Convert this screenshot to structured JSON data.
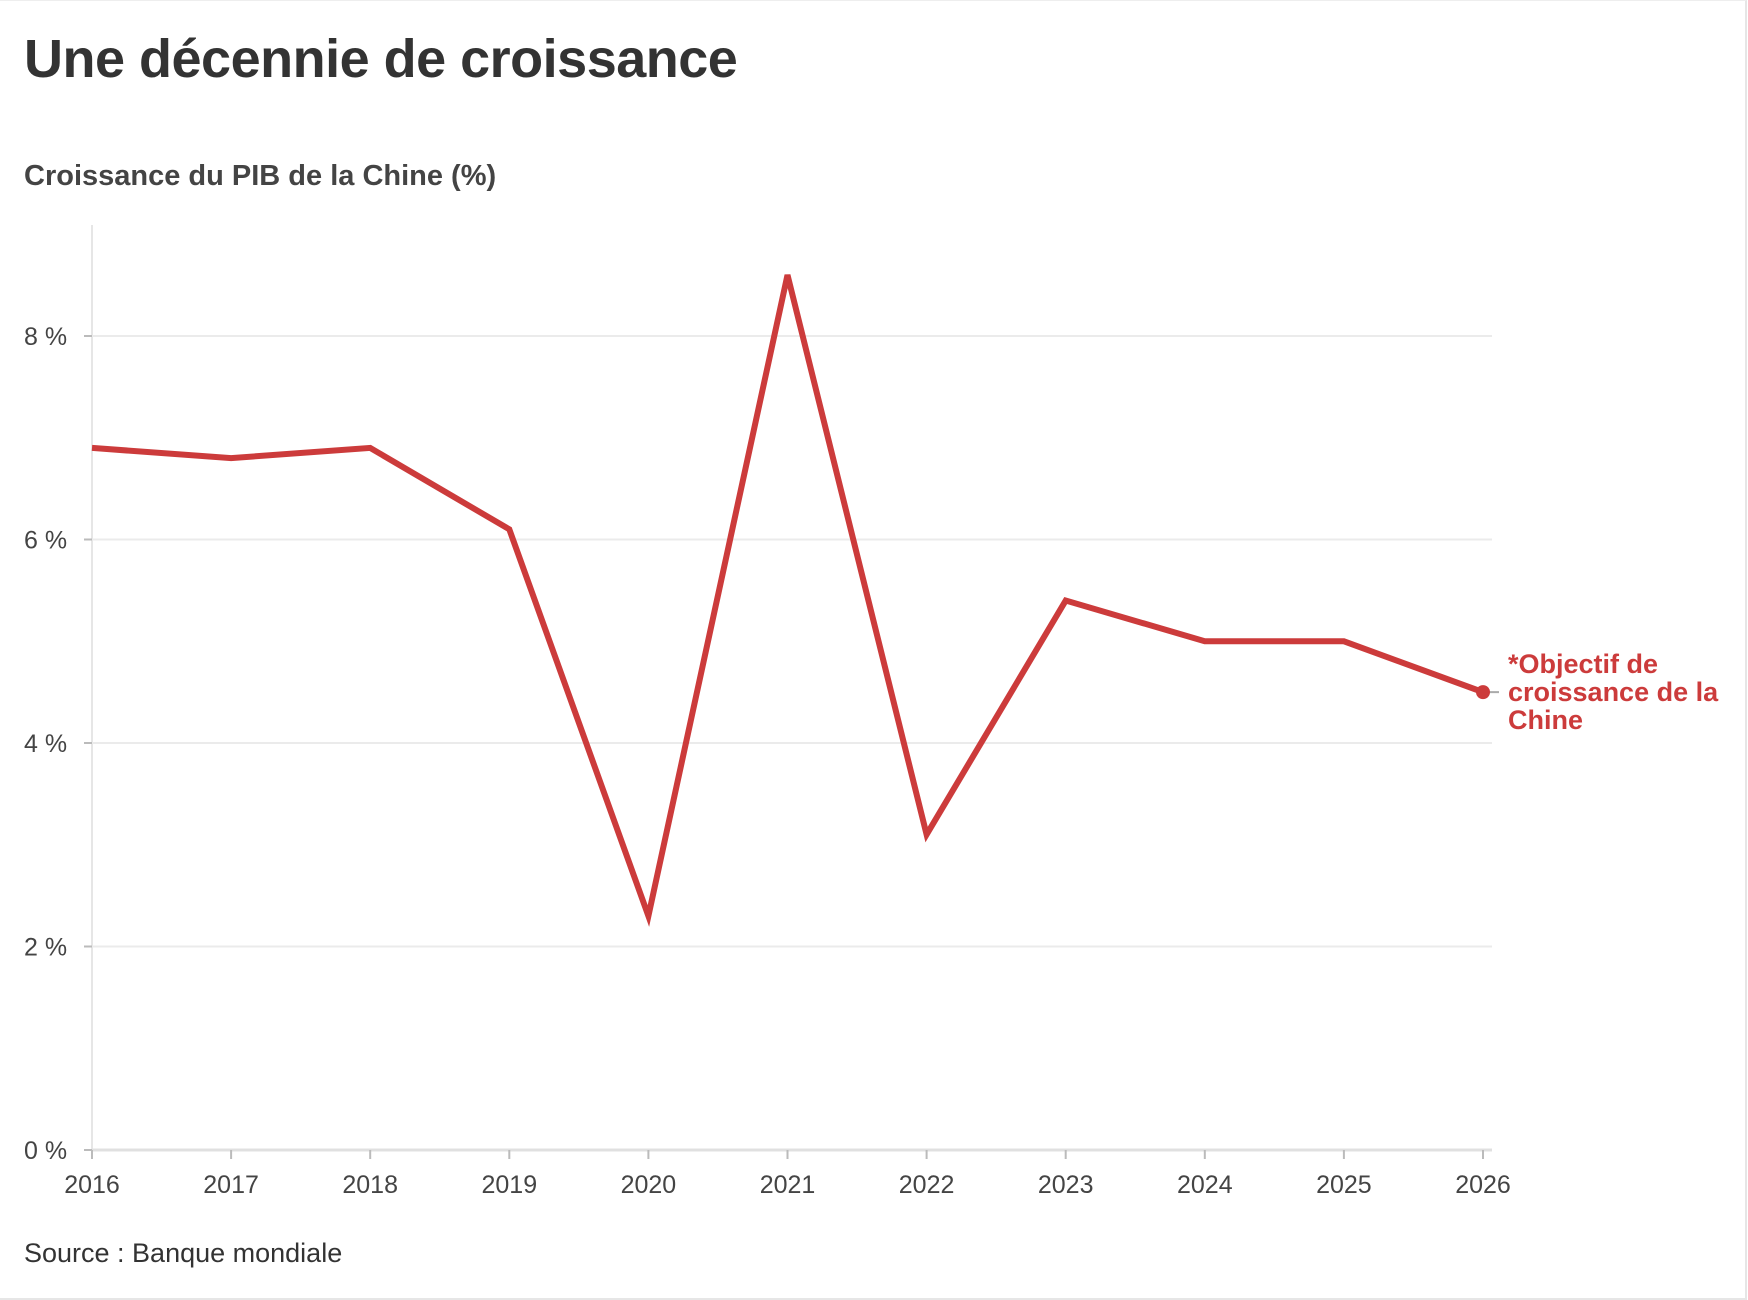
{
  "chart_data": {
    "type": "line",
    "title": "Une décennie de croissance",
    "subtitle": "Croissance du PIB de la Chine (%)",
    "source": "Source : Banque mondiale",
    "xlabel": "",
    "ylabel": "",
    "x": [
      2016,
      2017,
      2018,
      2019,
      2020,
      2021,
      2022,
      2023,
      2024,
      2025,
      2026
    ],
    "series": [
      {
        "values": [
          6.9,
          6.8,
          6.9,
          6.1,
          2.3,
          8.6,
          3.1,
          5.4,
          5.0,
          5.0,
          4.5
        ],
        "color": "#cc3b3b"
      }
    ],
    "ylim": [
      0,
      9
    ],
    "yticks": [
      0,
      2,
      4,
      6,
      8
    ],
    "ytick_labels": [
      "0 %",
      "2 %",
      "4 %",
      "6 %",
      "8 %"
    ],
    "xtick_labels": [
      "2016",
      "2017",
      "2018",
      "2019",
      "2020",
      "2021",
      "2022",
      "2023",
      "2024",
      "2025",
      "2026"
    ],
    "grid": true,
    "annotation": {
      "x": 2026,
      "y": 4.5,
      "lines": [
        "*Objectif de",
        "croissance de la",
        "Chine"
      ]
    }
  }
}
